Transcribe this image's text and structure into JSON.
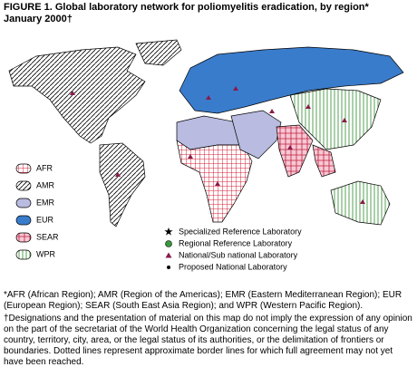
{
  "header": {
    "title_line1": "FIGURE 1. Global laboratory network for poliomyelitis eradication, by region*",
    "title_line2": "January 2000†"
  },
  "regions": [
    "AFR",
    "AMR",
    "EMR",
    "EUR",
    "SEAR",
    "WPR"
  ],
  "laboratories": [
    "Specialized Reference Laboratory",
    "Regional Reference Laboratory",
    "National/Sub national Laboratory",
    "Proposed National Laboratory"
  ],
  "footnotes": [
    "*AFR (African Region); AMR (Region of the Americas); EMR (Eastern Mediterranean Region); EUR (European Region); SEAR (South East Asia Region); and WPR (Western Pacific Region).",
    "†Designations and the presentation of material on this map do not imply the expression of any opinion on the part of the secretariat of the World Health Organization concerning the legal status of any country, territory, city, area, or the legal status of its authorities, or the delimitation of frontiers or boundaries. Dotted lines represent approximate border lines for which full agreement may not yet have been reached."
  ]
}
